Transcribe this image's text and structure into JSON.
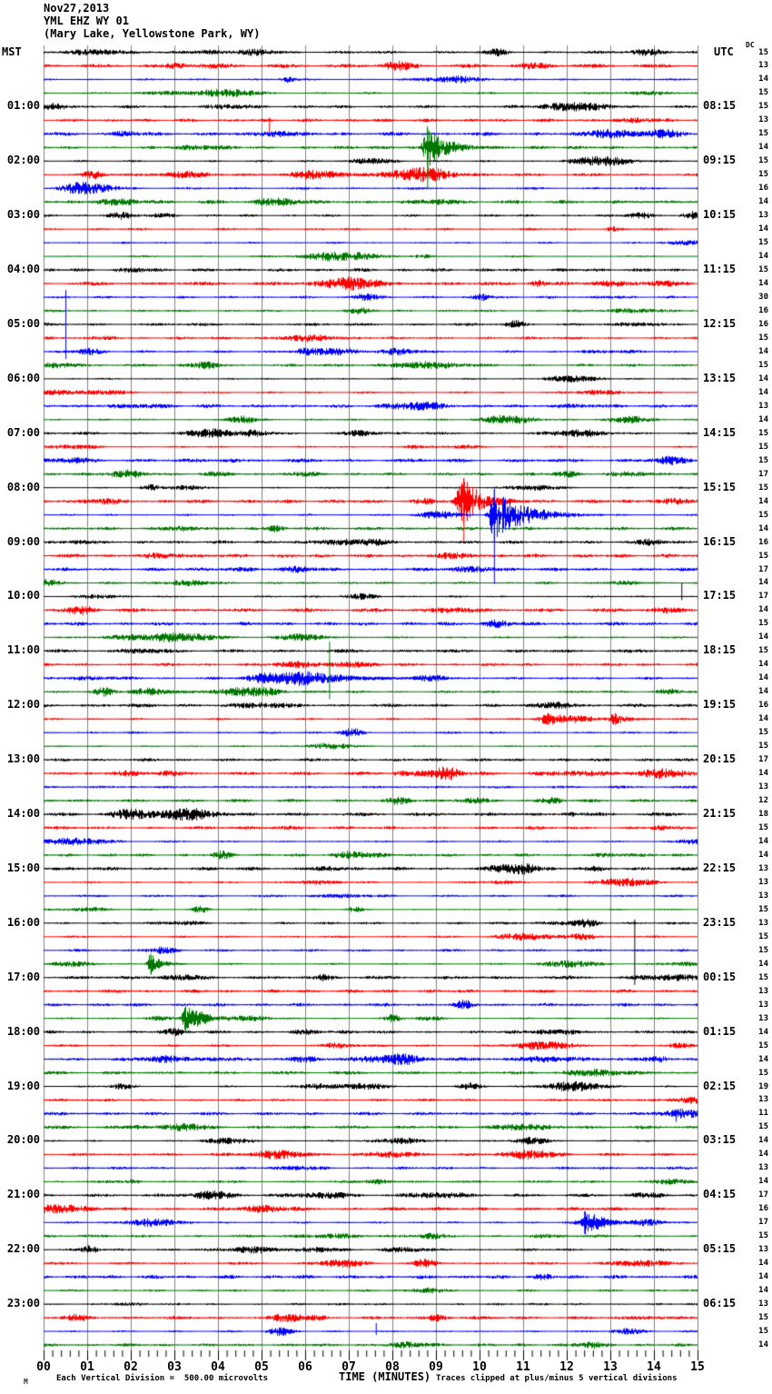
{
  "title": {
    "date": "Nov27,2013",
    "station": "YML EHZ WY 01",
    "location": "(Mary Lake, Yellowstone Park, WY)"
  },
  "axes": {
    "left_label": "MST",
    "right_label": "UTC",
    "dc_label": "DC",
    "bottom_label": "TIME (MINUTES)",
    "minute_ticks": [
      "00",
      "01",
      "02",
      "03",
      "04",
      "05",
      "06",
      "07",
      "08",
      "09",
      "10",
      "11",
      "12",
      "13",
      "14",
      "15"
    ]
  },
  "footer": {
    "left_note": "Each Vertical Division =  500.00 microvolts",
    "right_note": "Traces clipped at plus/minus 5 vertical divisions",
    "watermark": "M"
  },
  "chart_data": {
    "type": "line",
    "subtype": "helicorder-seismogram",
    "station": "YML EHZ WY 01",
    "minutes_per_line": 15,
    "lines_per_hour": 4,
    "total_rows": 96,
    "x_range_minutes": [
      0,
      15
    ],
    "grid": "vertical-minute-lines",
    "grid_color": "#808080",
    "trace_colors_cycle": [
      "#000000",
      "#ff0000",
      "#0000ff",
      "#007700"
    ],
    "left_times": [
      "01:00",
      "02:00",
      "03:00",
      "04:00",
      "05:00",
      "06:00",
      "07:00",
      "08:00",
      "09:00",
      "10:00",
      "11:00",
      "12:00",
      "13:00",
      "14:00",
      "15:00",
      "16:00",
      "17:00",
      "18:00",
      "19:00",
      "20:00",
      "21:00",
      "22:00",
      "23:00"
    ],
    "utc_times": [
      "08:15",
      "09:15",
      "10:15",
      "11:15",
      "12:15",
      "13:15",
      "14:15",
      "15:15",
      "16:15",
      "17:15",
      "18:15",
      "19:15",
      "20:15",
      "21:15",
      "22:15",
      "23:15",
      "00:15",
      "01:15",
      "02:15",
      "03:15",
      "04:15",
      "05:15",
      "06:15"
    ],
    "dc_values": [
      15,
      13,
      14,
      15,
      15,
      13,
      15,
      14,
      15,
      15,
      16,
      14,
      13,
      14,
      15,
      14,
      15,
      14,
      30,
      16,
      16,
      15,
      14,
      15,
      14,
      14,
      13,
      14,
      15,
      15,
      15,
      17,
      15,
      14,
      15,
      14,
      16,
      15,
      17,
      14,
      17,
      14,
      15,
      14,
      15,
      14,
      14,
      14,
      16,
      14,
      15,
      15,
      17,
      14,
      13,
      12,
      18,
      15,
      14,
      14,
      13,
      13,
      13,
      15,
      13,
      15,
      15,
      14,
      15,
      13,
      13,
      13,
      14,
      15,
      14,
      15,
      19,
      13,
      11,
      15,
      14,
      14,
      13,
      14,
      17,
      16,
      17,
      15,
      13,
      14,
      14,
      14,
      13,
      15,
      15,
      14
    ],
    "events": [
      {
        "row": 6,
        "minute": 5.17,
        "type": "spike",
        "up": 3,
        "down": 13
      },
      {
        "row": 8,
        "minute": 8.8,
        "type": "burst",
        "amp": 22,
        "attack": 0.1,
        "decay": 0.45,
        "tail_down": 46
      },
      {
        "row": 19,
        "minute": 0.5,
        "type": "spike",
        "up": 8,
        "down": 68
      },
      {
        "row": 34,
        "minute": 9.63,
        "type": "burst",
        "amp": 27,
        "attack": 0.15,
        "decay": 0.38,
        "tail_up": 25,
        "tail_down": 44
      },
      {
        "row": 35,
        "minute": 10.33,
        "type": "burst",
        "amp": 30,
        "attack": 0.12,
        "decay": 0.65,
        "tail_up": 28,
        "tail_down": 76
      },
      {
        "row": 41,
        "minute": 14.63,
        "type": "spike",
        "up": 15,
        "down": 4
      },
      {
        "row": 47,
        "minute": 5.0,
        "type": "burst",
        "amp": 5,
        "attack": 0.4,
        "decay": 0.5
      },
      {
        "row": 47,
        "minute": 6.05,
        "type": "burst",
        "amp": 8,
        "attack": 0.75,
        "decay": 0.85
      },
      {
        "row": 48,
        "minute": 6.55,
        "type": "spike",
        "up": 55,
        "down": 8
      },
      {
        "row": 50,
        "minute": 11.55,
        "type": "burst",
        "amp": 6,
        "attack": 0.22,
        "decay": 0.3
      },
      {
        "row": 50,
        "minute": 13.1,
        "type": "burst",
        "amp": 7,
        "attack": 0.12,
        "decay": 0.28
      },
      {
        "row": 65,
        "minute": 13.55,
        "type": "spike",
        "up": 4,
        "down": 68
      },
      {
        "row": 68,
        "minute": 2.45,
        "type": "burst",
        "amp": 12,
        "attack": 0.07,
        "decay": 0.22
      },
      {
        "row": 72,
        "minute": 3.25,
        "type": "burst",
        "amp": 14,
        "attack": 0.08,
        "decay": 0.3,
        "tail_down": 16
      },
      {
        "row": 79,
        "minute": 14.5,
        "type": "spike",
        "up": 3,
        "down": 9
      },
      {
        "row": 87,
        "minute": 12.4,
        "type": "burst",
        "amp": 13,
        "attack": 0.07,
        "decay": 0.3
      },
      {
        "row": 95,
        "minute": 7.62,
        "type": "spike",
        "up": 9,
        "down": 4
      }
    ],
    "clip_note": "Traces clipped at plus/minus 5 vertical divisions",
    "scale_note": "Each Vertical Division = 500.00 microvolts"
  }
}
